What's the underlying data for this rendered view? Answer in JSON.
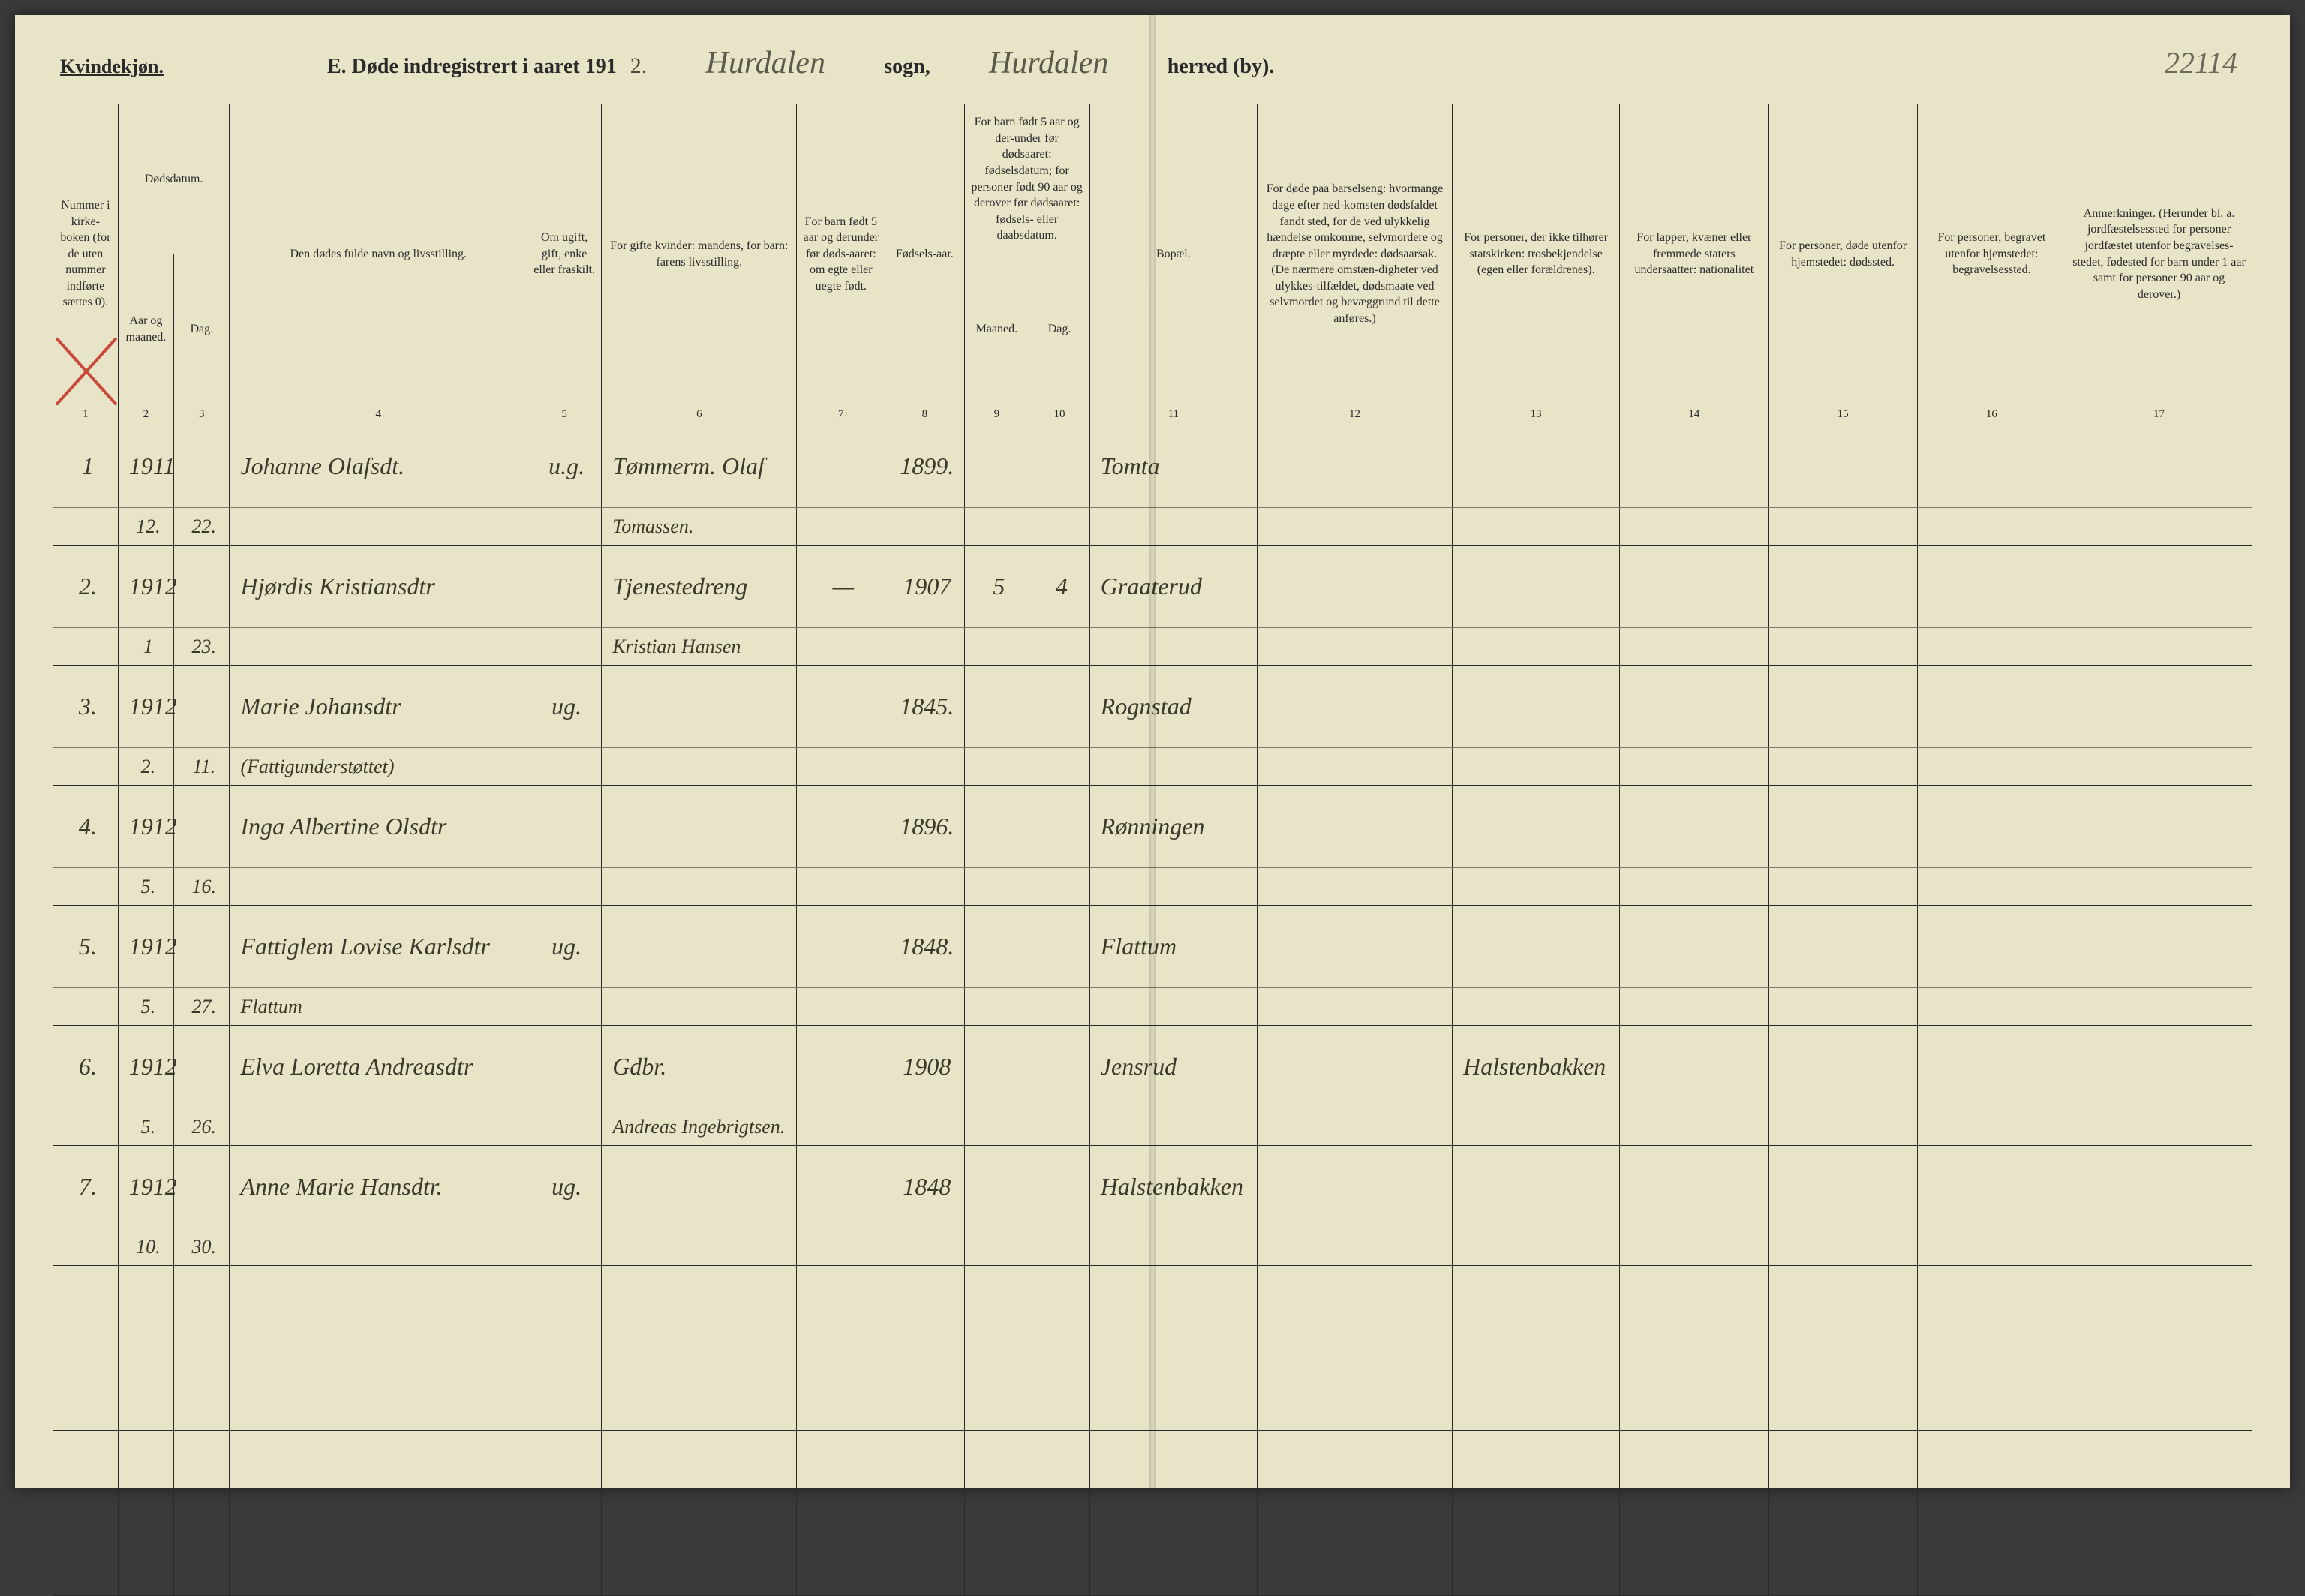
{
  "page_number_handwritten": "22114",
  "gender_heading": "Kvindekjøn.",
  "title_prefix": "E.  Døde indregistrert i aaret 191",
  "year_suffix_hand": "2.",
  "sogn_hand": "Hurdalen",
  "sogn_label": "sogn,",
  "herred_hand": "Hurdalen",
  "herred_label": "herred (by).",
  "columns": {
    "1": "Nummer i kirke-boken (for de uten nummer indførte sættes 0).",
    "2_3_top": "Dødsdatum.",
    "2": "Aar og maaned.",
    "3": "Dag.",
    "4": "Den dødes fulde navn og livsstilling.",
    "5": "Om ugift, gift, enke eller fraskilt.",
    "6": "For gifte kvinder: mandens, for barn: farens livsstilling.",
    "7": "For barn født 5 aar og derunder før døds-aaret: om egte eller uegte født.",
    "8": "Fødsels-aar.",
    "9_10_top": "For barn født 5 aar og der-under før dødsaaret: fødselsdatum; for personer født 90 aar og derover før dødsaaret: fødsels- eller daabsdatum.",
    "9": "Maaned.",
    "10": "Dag.",
    "11": "Bopæl.",
    "12": "For døde paa barselseng: hvormange dage efter ned-komsten dødsfaldet fandt sted, for de ved ulykkelig hændelse omkomne, selvmordere og dræpte eller myrdede: dødsaarsak. (De nærmere omstæn-digheter ved ulykkes-tilfældet, dødsmaate ved selvmordet og bevæggrund til dette anføres.)",
    "13": "For personer, der ikke tilhører statskirken: trosbekjendelse (egen eller forældrenes).",
    "14": "For lapper, kvæner eller fremmede staters undersaatter: nationalitet",
    "15": "For personer, døde utenfor hjemstedet: dødssted.",
    "16": "For personer, begravet utenfor hjemstedet: begravelsessted.",
    "17": "Anmerkninger. (Herunder bl. a. jordfæstelsessted for personer jordfæstet utenfor begravelses-stedet, fødested for barn under 1 aar samt for personer 90 aar og derover.)"
  },
  "colnums": [
    "1",
    "2",
    "3",
    "4",
    "5",
    "6",
    "7",
    "8",
    "9",
    "10",
    "11",
    "12",
    "13",
    "14",
    "15",
    "16",
    "17"
  ],
  "rows": [
    {
      "n": "1",
      "yr": "1911",
      "mo": "12.",
      "dy": "22.",
      "name": "Johanne Olafsdt.",
      "status": "u.g.",
      "rel": "Tømmerm. Olaf",
      "rel2": "Tomassen.",
      "c7": "",
      "born": "1899.",
      "m": "",
      "d": "",
      "place": "Tomta"
    },
    {
      "n": "2.",
      "yr": "1912",
      "mo": "1",
      "dy": "23.",
      "name": "Hjørdis Kristiansdtr",
      "status": "",
      "rel": "Tjenestedreng",
      "rel2": "Kristian Hansen",
      "c7": "—",
      "born": "1907",
      "m": "5",
      "d": "4",
      "place": "Graaterud"
    },
    {
      "n": "3.",
      "yr": "1912",
      "mo": "2.",
      "dy": "11.",
      "name": "Marie Johansdtr",
      "name2": "(Fattigunderstøttet)",
      "status": "ug.",
      "rel": "",
      "rel2": "",
      "c7": "",
      "born": "1845.",
      "m": "",
      "d": "",
      "place": "Rognstad"
    },
    {
      "n": "4.",
      "yr": "1912",
      "mo": "5.",
      "dy": "16.",
      "name": "Inga Albertine Olsdtr",
      "status": "",
      "rel": "",
      "rel2": "",
      "c7": "",
      "born": "1896.",
      "m": "",
      "d": "",
      "place": "Rønningen"
    },
    {
      "n": "5.",
      "yr": "1912",
      "mo": "5.",
      "dy": "27.",
      "name": "Fattiglem Lovise Karlsdtr",
      "name2": "Flattum",
      "status": "ug.",
      "rel": "",
      "rel2": "",
      "c7": "",
      "born": "1848.",
      "m": "",
      "d": "",
      "place": "Flattum"
    },
    {
      "n": "6.",
      "yr": "1912",
      "mo": "5.",
      "dy": "26.",
      "name": "Elva Loretta Andreasdtr",
      "status": "",
      "rel": "Gdbr.",
      "rel2": "Andreas Ingebrigtsen.",
      "c7": "",
      "born": "1908",
      "m": "",
      "d": "",
      "place": "Jensrud",
      "c13": "Halstenbakken"
    },
    {
      "n": "7.",
      "yr": "1912",
      "mo": "10.",
      "dy": "30.",
      "name": "Anne Marie Hansdtr.",
      "status": "ug.",
      "rel": "",
      "rel2": "",
      "c7": "",
      "born": "1848",
      "m": "",
      "d": "",
      "place": "Halstenbakken"
    }
  ],
  "empty_rows": 4,
  "colors": {
    "paper": "#e8e4c8",
    "ink": "#2a2a2a",
    "script": "#3a3a2a",
    "red": "#c94a3a",
    "rule": "#2a2a2a"
  }
}
